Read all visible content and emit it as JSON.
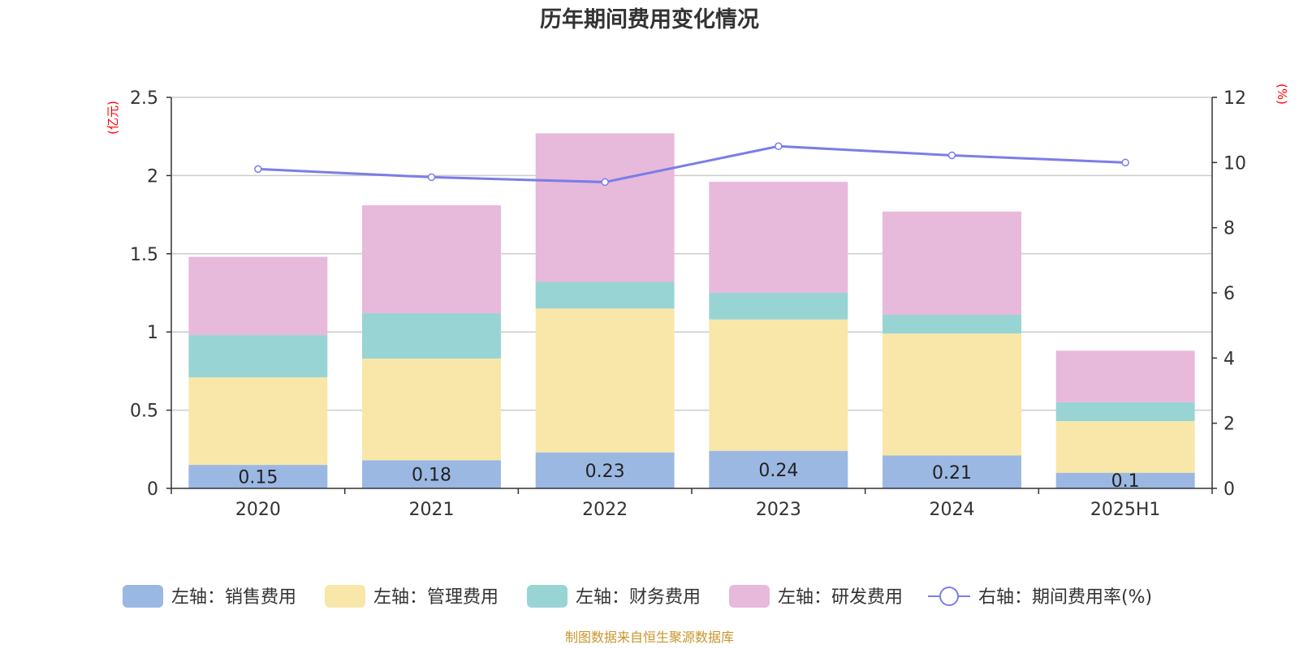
{
  "chart_data": {
    "type": "bar",
    "stacked": true,
    "title": "历年期间费用变化情况",
    "categories": [
      "2020",
      "2021",
      "2022",
      "2023",
      "2024",
      "2025H1"
    ],
    "left_axis": {
      "unit": "(亿元)",
      "ylim": [
        0,
        2.5
      ],
      "ticks": [
        "0",
        "0.5",
        "1",
        "1.5",
        "2",
        "2.5"
      ]
    },
    "right_axis": {
      "unit": "(%)",
      "ylim": [
        0,
        12
      ],
      "ticks": [
        "0",
        "2",
        "4",
        "6",
        "8",
        "10",
        "12"
      ]
    },
    "grid": true,
    "legend_position": "bottom",
    "series": [
      {
        "name": "左轴：销售费用",
        "color": "#9bb8e3",
        "values": [
          0.15,
          0.18,
          0.23,
          0.24,
          0.21,
          0.1
        ],
        "labels": [
          "0.15",
          "0.18",
          "0.23",
          "0.24",
          "0.21",
          "0.1"
        ]
      },
      {
        "name": "左轴：管理费用",
        "color": "#f8e7a8",
        "values": [
          0.56,
          0.65,
          0.92,
          0.84,
          0.78,
          0.33
        ]
      },
      {
        "name": "左轴：财务费用",
        "color": "#99d4d5",
        "values": [
          0.27,
          0.29,
          0.17,
          0.17,
          0.12,
          0.12
        ]
      },
      {
        "name": "左轴：研发费用",
        "color": "#e7b9da",
        "values": [
          0.5,
          0.69,
          0.95,
          0.71,
          0.66,
          0.33
        ]
      }
    ],
    "line_series": {
      "name": "右轴：期间费用率(%)",
      "color": "#7b7de8",
      "values": [
        9.8,
        9.55,
        9.4,
        10.5,
        10.22,
        10.0
      ]
    }
  },
  "source": "制图数据来自恒生聚源数据库"
}
